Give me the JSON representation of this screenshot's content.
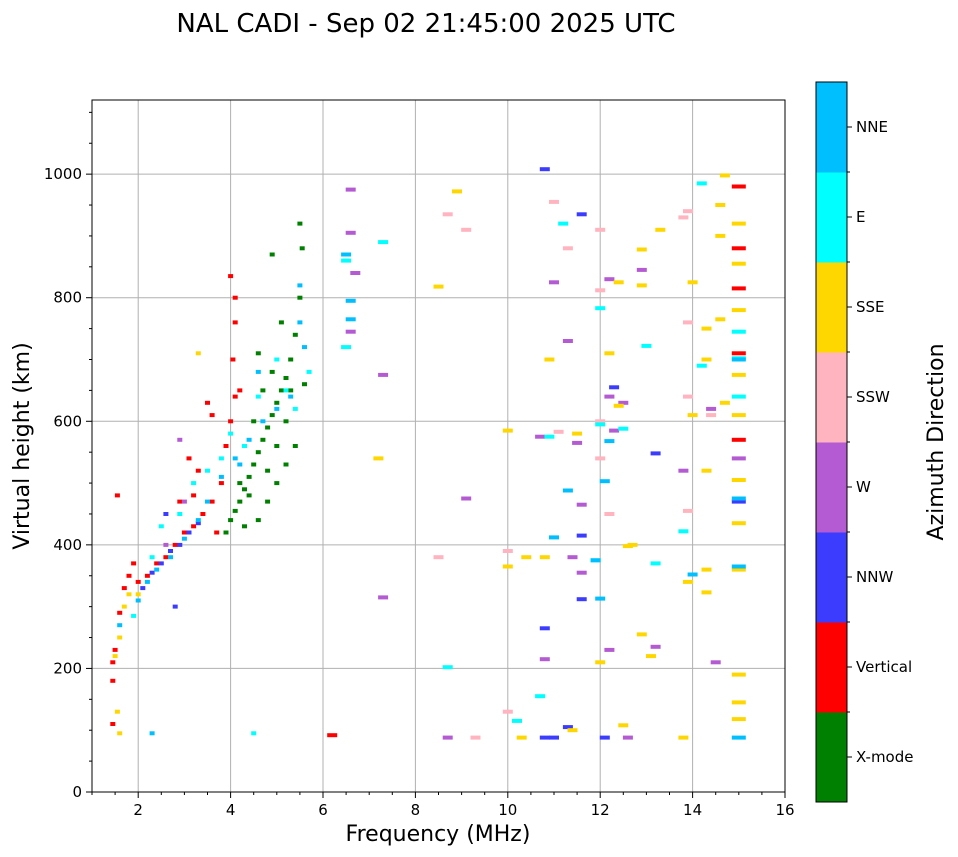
{
  "chart_data": {
    "type": "scatter",
    "title": "NAL CADI - Sep 02 21:45:00 2025 UTC",
    "xlabel": "Frequency (MHz)",
    "ylabel": "Virtual height (km)",
    "xlim": [
      1,
      16
    ],
    "ylim": [
      0,
      1120
    ],
    "xticks": [
      2,
      4,
      6,
      8,
      10,
      12,
      14,
      16
    ],
    "yticks": [
      0,
      200,
      400,
      600,
      800,
      1000
    ],
    "grid": true,
    "colorbar": {
      "label": "Azimuth Direction",
      "entries": [
        {
          "name": "X-mode",
          "color": "#008000"
        },
        {
          "name": "Vertical",
          "color": "#ff0000"
        },
        {
          "name": "NNW",
          "color": "#3c3cff"
        },
        {
          "name": "W",
          "color": "#b45ad2"
        },
        {
          "name": "SSW",
          "color": "#ffb4c0"
        },
        {
          "name": "SSE",
          "color": "#ffd700"
        },
        {
          "name": "E",
          "color": "#00ffff"
        },
        {
          "name": "NNE",
          "color": "#00bfff"
        }
      ]
    },
    "series": [
      {
        "name": "X-mode",
        "points": [
          [
            3.9,
            420
          ],
          [
            4.0,
            440
          ],
          [
            4.1,
            455
          ],
          [
            4.2,
            470
          ],
          [
            4.3,
            490
          ],
          [
            4.4,
            510
          ],
          [
            4.5,
            530
          ],
          [
            4.6,
            550
          ],
          [
            4.7,
            570
          ],
          [
            4.8,
            590
          ],
          [
            4.9,
            610
          ],
          [
            5.0,
            630
          ],
          [
            5.1,
            650
          ],
          [
            5.2,
            670
          ],
          [
            5.3,
            700
          ],
          [
            5.4,
            740
          ],
          [
            5.5,
            800
          ],
          [
            5.55,
            880
          ],
          [
            5.5,
            920
          ],
          [
            4.6,
            440
          ],
          [
            4.8,
            470
          ],
          [
            5.0,
            500
          ],
          [
            5.2,
            530
          ],
          [
            5.4,
            560
          ],
          [
            5.0,
            560
          ],
          [
            4.4,
            480
          ],
          [
            4.9,
            680
          ],
          [
            5.2,
            600
          ],
          [
            4.5,
            600
          ],
          [
            4.2,
            500
          ],
          [
            4.7,
            650
          ],
          [
            5.3,
            650
          ],
          [
            4.9,
            870
          ],
          [
            5.6,
            660
          ],
          [
            4.6,
            710
          ],
          [
            5.1,
            760
          ],
          [
            4.8,
            520
          ],
          [
            4.3,
            430
          ]
        ]
      },
      {
        "name": "Vertical",
        "points": [
          [
            1.45,
            180
          ],
          [
            1.45,
            210
          ],
          [
            1.5,
            230
          ],
          [
            1.6,
            290
          ],
          [
            1.7,
            330
          ],
          [
            1.8,
            350
          ],
          [
            1.9,
            370
          ],
          [
            2.0,
            340
          ],
          [
            2.2,
            350
          ],
          [
            2.4,
            370
          ],
          [
            2.6,
            380
          ],
          [
            2.8,
            400
          ],
          [
            3.0,
            420
          ],
          [
            3.2,
            430
          ],
          [
            3.4,
            450
          ],
          [
            3.6,
            470
          ],
          [
            3.8,
            500
          ],
          [
            3.9,
            560
          ],
          [
            4.0,
            600
          ],
          [
            4.1,
            640
          ],
          [
            4.05,
            700
          ],
          [
            4.1,
            760
          ],
          [
            4.1,
            800
          ],
          [
            4.0,
            835
          ],
          [
            3.5,
            630
          ],
          [
            3.3,
            520
          ],
          [
            3.6,
            610
          ],
          [
            1.55,
            480
          ],
          [
            2.9,
            470
          ],
          [
            3.1,
            540
          ],
          [
            3.7,
            420
          ],
          [
            4.2,
            650
          ],
          [
            6.2,
            92
          ],
          [
            15.0,
            980
          ],
          [
            15.0,
            880
          ],
          [
            15.0,
            815
          ],
          [
            15.0,
            710
          ],
          [
            15.0,
            570
          ],
          [
            1.45,
            110
          ],
          [
            3.2,
            480
          ]
        ]
      },
      {
        "name": "NNW",
        "points": [
          [
            2.1,
            330
          ],
          [
            2.3,
            355
          ],
          [
            2.5,
            370
          ],
          [
            2.7,
            390
          ],
          [
            2.9,
            400
          ],
          [
            3.1,
            420
          ],
          [
            3.3,
            435
          ],
          [
            2.8,
            300
          ],
          [
            2.6,
            450
          ],
          [
            10.8,
            1008
          ],
          [
            10.8,
            265
          ],
          [
            11.3,
            105
          ],
          [
            11.6,
            415
          ],
          [
            11.6,
            312
          ],
          [
            11.0,
            88
          ],
          [
            12.3,
            655
          ],
          [
            12.1,
            88
          ],
          [
            11.6,
            935
          ],
          [
            13.2,
            548
          ],
          [
            10.8,
            88
          ],
          [
            15.0,
            470
          ]
        ]
      },
      {
        "name": "W",
        "points": [
          [
            2.9,
            570
          ],
          [
            2.6,
            400
          ],
          [
            3.0,
            470
          ],
          [
            6.6,
            975
          ],
          [
            6.6,
            905
          ],
          [
            6.7,
            840
          ],
          [
            6.6,
            745
          ],
          [
            7.3,
            675
          ],
          [
            7.3,
            315
          ],
          [
            9.1,
            475
          ],
          [
            10.7,
            575
          ],
          [
            11.5,
            565
          ],
          [
            11.6,
            465
          ],
          [
            11.6,
            355
          ],
          [
            11.3,
            730
          ],
          [
            11.0,
            825
          ],
          [
            12.2,
            830
          ],
          [
            12.2,
            640
          ],
          [
            12.3,
            585
          ],
          [
            12.5,
            630
          ],
          [
            12.9,
            845
          ],
          [
            12.6,
            88
          ],
          [
            13.2,
            235
          ],
          [
            13.8,
            520
          ],
          [
            14.4,
            620
          ],
          [
            14.5,
            210
          ],
          [
            15.0,
            540
          ],
          [
            10.8,
            215
          ],
          [
            12.2,
            230
          ],
          [
            8.7,
            88
          ],
          [
            11.4,
            380
          ]
        ]
      },
      {
        "name": "SSW",
        "points": [
          [
            8.7,
            935
          ],
          [
            9.1,
            910
          ],
          [
            11.3,
            880
          ],
          [
            12.0,
            910
          ],
          [
            12.0,
            600
          ],
          [
            12.0,
            540
          ],
          [
            13.8,
            930
          ],
          [
            13.9,
            760
          ],
          [
            13.9,
            455
          ],
          [
            14.4,
            610
          ],
          [
            13.9,
            640
          ],
          [
            10.0,
            390
          ],
          [
            10.0,
            130
          ],
          [
            8.5,
            380
          ],
          [
            9.3,
            88
          ],
          [
            11.1,
            583
          ],
          [
            11.0,
            955
          ],
          [
            12.0,
            812
          ],
          [
            13.9,
            940
          ],
          [
            12.2,
            450
          ]
        ]
      },
      {
        "name": "SSE",
        "points": [
          [
            1.55,
            130
          ],
          [
            1.6,
            95
          ],
          [
            1.6,
            250
          ],
          [
            1.7,
            300
          ],
          [
            1.8,
            320
          ],
          [
            2.0,
            320
          ],
          [
            1.5,
            220
          ],
          [
            3.3,
            710
          ],
          [
            7.2,
            540
          ],
          [
            8.5,
            818
          ],
          [
            8.9,
            972
          ],
          [
            10.0,
            585
          ],
          [
            10.0,
            365
          ],
          [
            10.3,
            88
          ],
          [
            10.9,
            700
          ],
          [
            10.8,
            380
          ],
          [
            11.4,
            100
          ],
          [
            11.5,
            580
          ],
          [
            12.0,
            210
          ],
          [
            12.2,
            710
          ],
          [
            12.4,
            625
          ],
          [
            12.4,
            825
          ],
          [
            12.5,
            108
          ],
          [
            12.7,
            400
          ],
          [
            12.9,
            878
          ],
          [
            12.9,
            820
          ],
          [
            12.9,
            255
          ],
          [
            13.1,
            220
          ],
          [
            13.3,
            910
          ],
          [
            13.8,
            88
          ],
          [
            13.9,
            340
          ],
          [
            14.0,
            825
          ],
          [
            14.0,
            610
          ],
          [
            14.3,
            750
          ],
          [
            14.3,
            700
          ],
          [
            14.3,
            520
          ],
          [
            14.3,
            360
          ],
          [
            14.3,
            323
          ],
          [
            14.6,
            900
          ],
          [
            14.6,
            765
          ],
          [
            14.7,
            630
          ],
          [
            15.0,
            920
          ],
          [
            15.0,
            855
          ],
          [
            15.0,
            780
          ],
          [
            15.0,
            675
          ],
          [
            15.0,
            610
          ],
          [
            15.0,
            505
          ],
          [
            15.0,
            435
          ],
          [
            15.0,
            360
          ],
          [
            15.0,
            190
          ],
          [
            15.0,
            145
          ],
          [
            15.0,
            118
          ],
          [
            10.4,
            380
          ],
          [
            14.7,
            998
          ],
          [
            14.6,
            950
          ],
          [
            12.6,
            398
          ]
        ]
      },
      {
        "name": "E",
        "points": [
          [
            1.9,
            285
          ],
          [
            2.3,
            380
          ],
          [
            2.5,
            430
          ],
          [
            2.9,
            450
          ],
          [
            3.2,
            500
          ],
          [
            3.5,
            520
          ],
          [
            3.8,
            540
          ],
          [
            4.0,
            580
          ],
          [
            4.3,
            560
          ],
          [
            4.6,
            640
          ],
          [
            5.0,
            700
          ],
          [
            5.2,
            650
          ],
          [
            5.4,
            620
          ],
          [
            6.5,
            720
          ],
          [
            6.5,
            860
          ],
          [
            7.3,
            890
          ],
          [
            10.2,
            115
          ],
          [
            10.9,
            575
          ],
          [
            11.9,
            375
          ],
          [
            12.0,
            783
          ],
          [
            12.0,
            595
          ],
          [
            12.5,
            588
          ],
          [
            13.0,
            722
          ],
          [
            13.2,
            370
          ],
          [
            13.8,
            422
          ],
          [
            14.2,
            985
          ],
          [
            14.2,
            690
          ],
          [
            15.0,
            745
          ],
          [
            15.0,
            640
          ],
          [
            15.0,
            702
          ],
          [
            8.7,
            202
          ],
          [
            11.2,
            920
          ],
          [
            10.7,
            155
          ],
          [
            4.5,
            95
          ],
          [
            5.7,
            680
          ]
        ]
      },
      {
        "name": "NNE",
        "points": [
          [
            2.0,
            310
          ],
          [
            2.2,
            340
          ],
          [
            2.4,
            360
          ],
          [
            2.7,
            380
          ],
          [
            3.0,
            410
          ],
          [
            3.3,
            440
          ],
          [
            3.5,
            470
          ],
          [
            3.8,
            510
          ],
          [
            4.1,
            540
          ],
          [
            4.4,
            570
          ],
          [
            4.7,
            600
          ],
          [
            5.0,
            620
          ],
          [
            5.3,
            640
          ],
          [
            5.5,
            760
          ],
          [
            5.5,
            820
          ],
          [
            5.6,
            720
          ],
          [
            4.6,
            680
          ],
          [
            4.2,
            530
          ],
          [
            6.5,
            870
          ],
          [
            6.6,
            795
          ],
          [
            6.6,
            765
          ],
          [
            11.0,
            412
          ],
          [
            12.0,
            313
          ],
          [
            11.9,
            375
          ],
          [
            12.1,
            503
          ],
          [
            12.2,
            568
          ],
          [
            14.0,
            352
          ],
          [
            15.0,
            700
          ],
          [
            15.0,
            475
          ],
          [
            15.0,
            88
          ],
          [
            15.0,
            365
          ],
          [
            11.3,
            488
          ],
          [
            2.3,
            95
          ],
          [
            1.6,
            270
          ]
        ]
      }
    ]
  }
}
